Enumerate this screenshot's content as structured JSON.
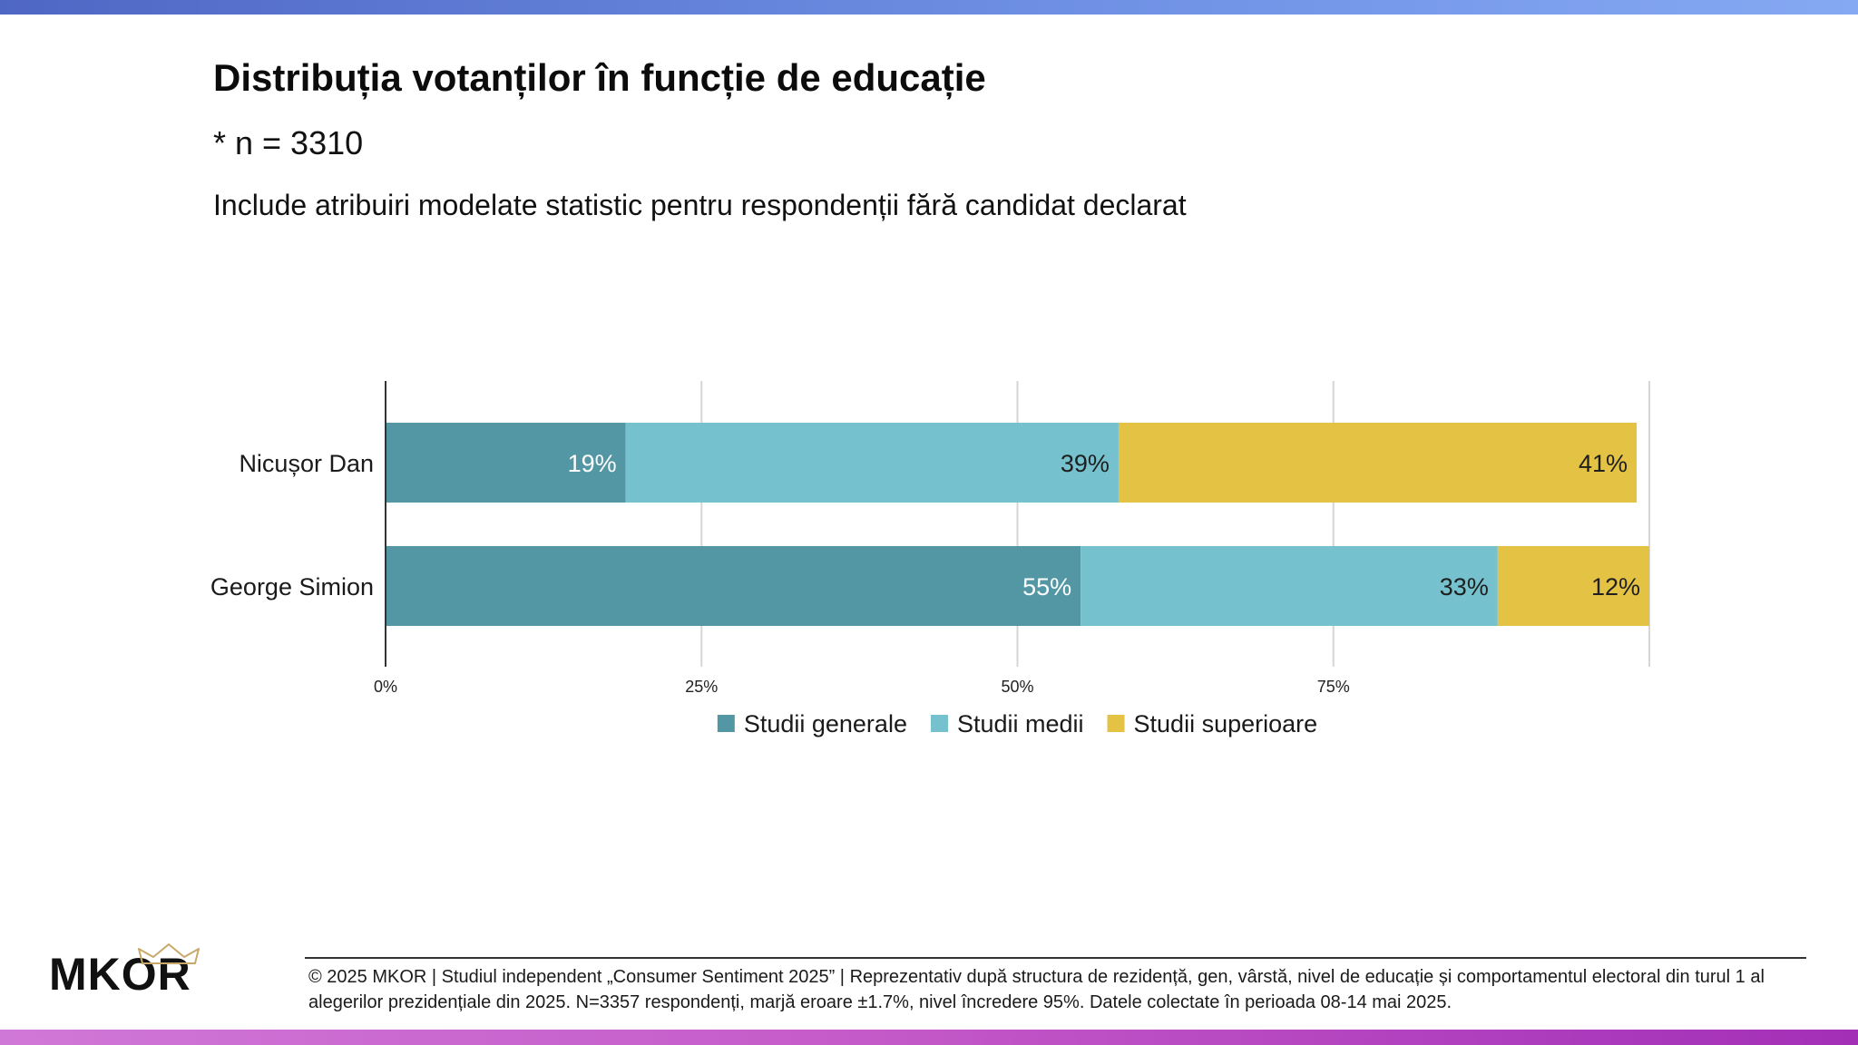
{
  "header": {
    "title": "Distribuția votanților în funcție de educație",
    "sample": "* n = 3310",
    "subtitle": "Include atribuiri modelate statistic pentru respondenții fără candidat declarat"
  },
  "chart_data": {
    "type": "bar",
    "orientation": "horizontal",
    "stacked": true,
    "categories": [
      "Nicușor Dan",
      "George Simion"
    ],
    "series": [
      {
        "name": "Studii generale",
        "values": [
          19,
          55
        ],
        "labels": [
          "19%",
          "55%"
        ],
        "color": "#5497a4",
        "label_color": "#ffffff"
      },
      {
        "name": "Studii medii",
        "values": [
          39,
          33
        ],
        "labels": [
          "39%",
          "33%"
        ],
        "color": "#75c1cd",
        "label_color": "#1f1f1f"
      },
      {
        "name": "Studii superioare",
        "values": [
          41,
          12
        ],
        "labels": [
          "41%",
          "12%"
        ],
        "color": "#e3c244",
        "label_color": "#1f1f1f"
      }
    ],
    "xlim": [
      0,
      100
    ],
    "xticks": [
      0,
      25,
      50,
      75
    ],
    "xtick_labels": [
      "0%",
      "25%",
      "50%",
      "75%"
    ],
    "grid": true,
    "legend_position": "bottom",
    "title": "",
    "xlabel": "",
    "ylabel": ""
  },
  "footer": {
    "logo_text": "MKOR",
    "note": "© 2025 MKOR | Studiul independent „Consumer Sentiment 2025” | Reprezentativ după structura de rezidență, gen, vârstă, nivel de educație și comportamentul electoral din turul 1 al alegerilor prezidențiale din 2025. N=3357 respondenți, marjă eroare ±1.7%, nivel încredere 95%. Datele colectate în perioada 08-14 mai 2025."
  },
  "colors": {
    "top_bar": "#5c79d4",
    "bottom_bar": "#c055c8",
    "logo_crown": "#c9a96b"
  }
}
